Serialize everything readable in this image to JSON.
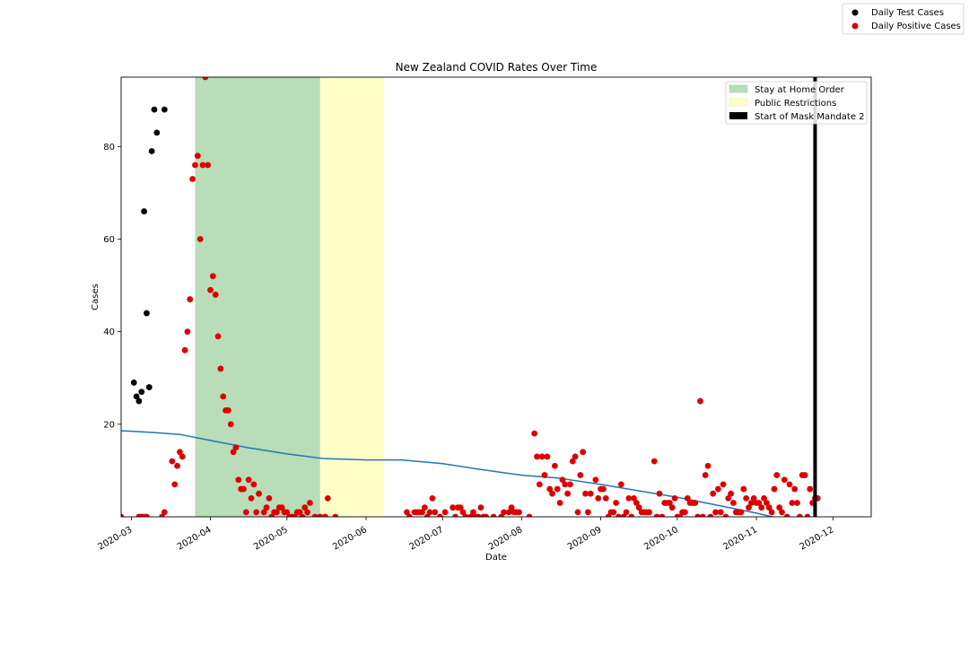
{
  "chart_data": {
    "type": "scatter",
    "title": "New Zealand COVID Rates Over Time",
    "xlabel": "Date",
    "ylabel": "Cases",
    "xlim": [
      "2020-02-26",
      "2020-12-16"
    ],
    "ylim": [
      0,
      95
    ],
    "x_ticks": [
      "2020-03",
      "2020-04",
      "2020-05",
      "2020-06",
      "2020-07",
      "2020-08",
      "2020-09",
      "2020-10",
      "2020-11",
      "2020-12"
    ],
    "y_ticks": [
      20,
      40,
      60,
      80
    ],
    "grid": false,
    "series_test": {
      "name": "Daily Test Cases",
      "color": "#000000",
      "points": [
        {
          "x": "2020-03-02",
          "y": 29
        },
        {
          "x": "2020-03-03",
          "y": 26
        },
        {
          "x": "2020-03-04",
          "y": 25
        },
        {
          "x": "2020-03-05",
          "y": 27
        },
        {
          "x": "2020-03-06",
          "y": 66
        },
        {
          "x": "2020-03-07",
          "y": 44
        },
        {
          "x": "2020-03-08",
          "y": 28
        },
        {
          "x": "2020-03-09",
          "y": 79
        },
        {
          "x": "2020-03-10",
          "y": 88
        },
        {
          "x": "2020-03-11",
          "y": 83
        },
        {
          "x": "2020-03-14",
          "y": 88
        }
      ]
    },
    "series_positive": {
      "name": "Daily Positive Cases",
      "color": "#dd0000",
      "points": [
        {
          "x": "2020-02-26",
          "y": 0
        },
        {
          "x": "2020-03-04",
          "y": 0
        },
        {
          "x": "2020-03-05",
          "y": 0
        },
        {
          "x": "2020-03-06",
          "y": 0
        },
        {
          "x": "2020-03-07",
          "y": 0
        },
        {
          "x": "2020-03-13",
          "y": 0
        },
        {
          "x": "2020-03-14",
          "y": 1
        },
        {
          "x": "2020-03-17",
          "y": 12
        },
        {
          "x": "2020-03-18",
          "y": 7
        },
        {
          "x": "2020-03-19",
          "y": 11
        },
        {
          "x": "2020-03-20",
          "y": 14
        },
        {
          "x": "2020-03-21",
          "y": 13
        },
        {
          "x": "2020-03-22",
          "y": 36
        },
        {
          "x": "2020-03-23",
          "y": 40
        },
        {
          "x": "2020-03-24",
          "y": 47
        },
        {
          "x": "2020-03-25",
          "y": 73
        },
        {
          "x": "2020-03-26",
          "y": 76
        },
        {
          "x": "2020-03-27",
          "y": 78
        },
        {
          "x": "2020-03-28",
          "y": 60
        },
        {
          "x": "2020-03-29",
          "y": 76
        },
        {
          "x": "2020-03-30",
          "y": 95
        },
        {
          "x": "2020-03-31",
          "y": 76
        },
        {
          "x": "2020-04-01",
          "y": 49
        },
        {
          "x": "2020-04-02",
          "y": 52
        },
        {
          "x": "2020-04-03",
          "y": 48
        },
        {
          "x": "2020-04-04",
          "y": 39
        },
        {
          "x": "2020-04-05",
          "y": 32
        },
        {
          "x": "2020-04-06",
          "y": 26
        },
        {
          "x": "2020-04-07",
          "y": 23
        },
        {
          "x": "2020-04-08",
          "y": 23
        },
        {
          "x": "2020-04-09",
          "y": 20
        },
        {
          "x": "2020-04-10",
          "y": 14
        },
        {
          "x": "2020-04-11",
          "y": 15
        },
        {
          "x": "2020-04-12",
          "y": 8
        },
        {
          "x": "2020-04-13",
          "y": 6
        },
        {
          "x": "2020-04-14",
          "y": 6
        },
        {
          "x": "2020-04-15",
          "y": 1
        },
        {
          "x": "2020-04-16",
          "y": 8
        },
        {
          "x": "2020-04-17",
          "y": 4
        },
        {
          "x": "2020-04-18",
          "y": 7
        },
        {
          "x": "2020-04-19",
          "y": 1
        },
        {
          "x": "2020-04-20",
          "y": 5
        },
        {
          "x": "2020-04-22",
          "y": 1
        },
        {
          "x": "2020-04-23",
          "y": 2
        },
        {
          "x": "2020-04-24",
          "y": 4
        },
        {
          "x": "2020-04-25",
          "y": 0
        },
        {
          "x": "2020-04-26",
          "y": 1
        },
        {
          "x": "2020-04-27",
          "y": 1
        },
        {
          "x": "2020-04-28",
          "y": 2
        },
        {
          "x": "2020-04-29",
          "y": 2
        },
        {
          "x": "2020-04-30",
          "y": 1
        },
        {
          "x": "2020-05-01",
          "y": 1
        },
        {
          "x": "2020-05-02",
          "y": 0
        },
        {
          "x": "2020-05-03",
          "y": 0
        },
        {
          "x": "2020-05-04",
          "y": 0
        },
        {
          "x": "2020-05-05",
          "y": 1
        },
        {
          "x": "2020-05-06",
          "y": 1
        },
        {
          "x": "2020-05-07",
          "y": 0
        },
        {
          "x": "2020-05-08",
          "y": 2
        },
        {
          "x": "2020-05-09",
          "y": 1
        },
        {
          "x": "2020-05-10",
          "y": 3
        },
        {
          "x": "2020-05-12",
          "y": 0
        },
        {
          "x": "2020-05-14",
          "y": 0
        },
        {
          "x": "2020-05-16",
          "y": 0
        },
        {
          "x": "2020-05-17",
          "y": 4
        },
        {
          "x": "2020-05-20",
          "y": 0
        },
        {
          "x": "2020-06-17",
          "y": 1
        },
        {
          "x": "2020-06-18",
          "y": 0
        },
        {
          "x": "2020-06-20",
          "y": 1
        },
        {
          "x": "2020-06-21",
          "y": 1
        },
        {
          "x": "2020-06-22",
          "y": 1
        },
        {
          "x": "2020-06-23",
          "y": 1
        },
        {
          "x": "2020-06-24",
          "y": 2
        },
        {
          "x": "2020-06-25",
          "y": 0
        },
        {
          "x": "2020-06-26",
          "y": 1
        },
        {
          "x": "2020-06-27",
          "y": 4
        },
        {
          "x": "2020-06-28",
          "y": 1
        },
        {
          "x": "2020-06-30",
          "y": 0
        },
        {
          "x": "2020-07-02",
          "y": 1
        },
        {
          "x": "2020-07-05",
          "y": 2
        },
        {
          "x": "2020-07-06",
          "y": 0
        },
        {
          "x": "2020-07-07",
          "y": 2
        },
        {
          "x": "2020-07-08",
          "y": 2
        },
        {
          "x": "2020-07-09",
          "y": 1
        },
        {
          "x": "2020-07-10",
          "y": 0
        },
        {
          "x": "2020-07-12",
          "y": 0
        },
        {
          "x": "2020-07-13",
          "y": 1
        },
        {
          "x": "2020-07-14",
          "y": 0
        },
        {
          "x": "2020-07-15",
          "y": 0
        },
        {
          "x": "2020-07-16",
          "y": 2
        },
        {
          "x": "2020-07-17",
          "y": 0
        },
        {
          "x": "2020-07-18",
          "y": 0
        },
        {
          "x": "2020-07-21",
          "y": 0
        },
        {
          "x": "2020-07-24",
          "y": 0
        },
        {
          "x": "2020-07-25",
          "y": 1
        },
        {
          "x": "2020-07-27",
          "y": 1
        },
        {
          "x": "2020-07-28",
          "y": 2
        },
        {
          "x": "2020-07-29",
          "y": 1
        },
        {
          "x": "2020-07-30",
          "y": 1
        },
        {
          "x": "2020-07-31",
          "y": 1
        },
        {
          "x": "2020-08-04",
          "y": 0
        },
        {
          "x": "2020-08-06",
          "y": 18
        },
        {
          "x": "2020-08-07",
          "y": 13
        },
        {
          "x": "2020-08-08",
          "y": 7
        },
        {
          "x": "2020-08-09",
          "y": 13
        },
        {
          "x": "2020-08-10",
          "y": 9
        },
        {
          "x": "2020-08-11",
          "y": 13
        },
        {
          "x": "2020-08-12",
          "y": 6
        },
        {
          "x": "2020-08-13",
          "y": 5
        },
        {
          "x": "2020-08-14",
          "y": 11
        },
        {
          "x": "2020-08-15",
          "y": 6
        },
        {
          "x": "2020-08-16",
          "y": 3
        },
        {
          "x": "2020-08-17",
          "y": 8
        },
        {
          "x": "2020-08-18",
          "y": 7
        },
        {
          "x": "2020-08-19",
          "y": 5
        },
        {
          "x": "2020-08-20",
          "y": 7
        },
        {
          "x": "2020-08-21",
          "y": 12
        },
        {
          "x": "2020-08-22",
          "y": 13
        },
        {
          "x": "2020-08-23",
          "y": 1
        },
        {
          "x": "2020-08-24",
          "y": 9
        },
        {
          "x": "2020-08-25",
          "y": 14
        },
        {
          "x": "2020-08-26",
          "y": 5
        },
        {
          "x": "2020-08-27",
          "y": 1
        },
        {
          "x": "2020-08-28",
          "y": 5
        },
        {
          "x": "2020-08-30",
          "y": 8
        },
        {
          "x": "2020-08-31",
          "y": 4
        },
        {
          "x": "2020-09-01",
          "y": 6
        },
        {
          "x": "2020-09-02",
          "y": 6
        },
        {
          "x": "2020-09-03",
          "y": 4
        },
        {
          "x": "2020-09-04",
          "y": 0
        },
        {
          "x": "2020-09-05",
          "y": 1
        },
        {
          "x": "2020-09-06",
          "y": 1
        },
        {
          "x": "2020-09-07",
          "y": 3
        },
        {
          "x": "2020-09-08",
          "y": 0
        },
        {
          "x": "2020-09-09",
          "y": 7
        },
        {
          "x": "2020-09-10",
          "y": 0
        },
        {
          "x": "2020-09-11",
          "y": 1
        },
        {
          "x": "2020-09-12",
          "y": 4
        },
        {
          "x": "2020-09-13",
          "y": 0
        },
        {
          "x": "2020-09-14",
          "y": 4
        },
        {
          "x": "2020-09-15",
          "y": 3
        },
        {
          "x": "2020-09-16",
          "y": 2
        },
        {
          "x": "2020-09-17",
          "y": 1
        },
        {
          "x": "2020-09-18",
          "y": 1
        },
        {
          "x": "2020-09-19",
          "y": 1
        },
        {
          "x": "2020-09-20",
          "y": 1
        },
        {
          "x": "2020-09-22",
          "y": 12
        },
        {
          "x": "2020-09-23",
          "y": 0
        },
        {
          "x": "2020-09-24",
          "y": 5
        },
        {
          "x": "2020-09-25",
          "y": 0
        },
        {
          "x": "2020-09-26",
          "y": 3
        },
        {
          "x": "2020-09-27",
          "y": 3
        },
        {
          "x": "2020-09-28",
          "y": 3
        },
        {
          "x": "2020-09-29",
          "y": 2
        },
        {
          "x": "2020-09-30",
          "y": 4
        },
        {
          "x": "2020-10-01",
          "y": 0
        },
        {
          "x": "2020-10-02",
          "y": 0
        },
        {
          "x": "2020-10-03",
          "y": 1
        },
        {
          "x": "2020-10-04",
          "y": 1
        },
        {
          "x": "2020-10-05",
          "y": 4
        },
        {
          "x": "2020-10-06",
          "y": 3
        },
        {
          "x": "2020-10-07",
          "y": 3
        },
        {
          "x": "2020-10-08",
          "y": 3
        },
        {
          "x": "2020-10-09",
          "y": 0
        },
        {
          "x": "2020-10-10",
          "y": 25
        },
        {
          "x": "2020-10-11",
          "y": 0
        },
        {
          "x": "2020-10-12",
          "y": 9
        },
        {
          "x": "2020-10-13",
          "y": 11
        },
        {
          "x": "2020-10-14",
          "y": 0
        },
        {
          "x": "2020-10-15",
          "y": 5
        },
        {
          "x": "2020-10-16",
          "y": 1
        },
        {
          "x": "2020-10-17",
          "y": 6
        },
        {
          "x": "2020-10-18",
          "y": 1
        },
        {
          "x": "2020-10-19",
          "y": 7
        },
        {
          "x": "2020-10-20",
          "y": 0
        },
        {
          "x": "2020-10-21",
          "y": 4
        },
        {
          "x": "2020-10-22",
          "y": 5
        },
        {
          "x": "2020-10-23",
          "y": 3
        },
        {
          "x": "2020-10-24",
          "y": 1
        },
        {
          "x": "2020-10-25",
          "y": 1
        },
        {
          "x": "2020-10-26",
          "y": 1
        },
        {
          "x": "2020-10-27",
          "y": 6
        },
        {
          "x": "2020-10-28",
          "y": 4
        },
        {
          "x": "2020-10-29",
          "y": 2
        },
        {
          "x": "2020-10-30",
          "y": 3
        },
        {
          "x": "2020-10-31",
          "y": 4
        },
        {
          "x": "2020-11-01",
          "y": 3
        },
        {
          "x": "2020-11-02",
          "y": 3
        },
        {
          "x": "2020-11-03",
          "y": 2
        },
        {
          "x": "2020-11-04",
          "y": 4
        },
        {
          "x": "2020-11-05",
          "y": 3
        },
        {
          "x": "2020-11-06",
          "y": 2
        },
        {
          "x": "2020-11-07",
          "y": 1
        },
        {
          "x": "2020-11-08",
          "y": 6
        },
        {
          "x": "2020-11-09",
          "y": 9
        },
        {
          "x": "2020-11-10",
          "y": 2
        },
        {
          "x": "2020-11-11",
          "y": 1
        },
        {
          "x": "2020-11-12",
          "y": 8
        },
        {
          "x": "2020-11-13",
          "y": 0
        },
        {
          "x": "2020-11-14",
          "y": 7
        },
        {
          "x": "2020-11-15",
          "y": 3
        },
        {
          "x": "2020-11-16",
          "y": 6
        },
        {
          "x": "2020-11-17",
          "y": 3
        },
        {
          "x": "2020-11-18",
          "y": 0
        },
        {
          "x": "2020-11-19",
          "y": 9
        },
        {
          "x": "2020-11-20",
          "y": 9
        },
        {
          "x": "2020-11-21",
          "y": 0
        },
        {
          "x": "2020-11-22",
          "y": 6
        },
        {
          "x": "2020-11-23",
          "y": 3
        },
        {
          "x": "2020-11-24",
          "y": 4
        },
        {
          "x": "2020-11-25",
          "y": 4
        }
      ]
    },
    "trend_line": {
      "color": "#1f77b4",
      "points": [
        {
          "x": "2020-02-26",
          "y": 18.6
        },
        {
          "x": "2020-03-01",
          "y": 18.5
        },
        {
          "x": "2020-03-10",
          "y": 18.2
        },
        {
          "x": "2020-03-20",
          "y": 17.8
        },
        {
          "x": "2020-04-01",
          "y": 16.5
        },
        {
          "x": "2020-04-15",
          "y": 15.0
        },
        {
          "x": "2020-05-01",
          "y": 13.6
        },
        {
          "x": "2020-05-15",
          "y": 12.6
        },
        {
          "x": "2020-06-01",
          "y": 12.3
        },
        {
          "x": "2020-06-15",
          "y": 12.3
        },
        {
          "x": "2020-07-01",
          "y": 11.5
        },
        {
          "x": "2020-07-15",
          "y": 10.3
        },
        {
          "x": "2020-08-01",
          "y": 9.0
        },
        {
          "x": "2020-08-15",
          "y": 8.4
        },
        {
          "x": "2020-09-01",
          "y": 7.0
        },
        {
          "x": "2020-09-15",
          "y": 5.7
        },
        {
          "x": "2020-10-01",
          "y": 4.2
        },
        {
          "x": "2020-10-15",
          "y": 2.7
        },
        {
          "x": "2020-11-01",
          "y": 0.8
        },
        {
          "x": "2020-11-12",
          "y": -0.6
        }
      ]
    },
    "spans": [
      {
        "label": "Stay at Home Order",
        "start": "2020-03-26",
        "end": "2020-05-14",
        "color": "#b9dcb9"
      },
      {
        "label": "Public Restrictions",
        "start": "2020-05-14",
        "end": "2020-06-08",
        "color": "#ffffc8"
      }
    ],
    "vline": {
      "label": "Start of Mask Mandate 2",
      "x": "2020-11-24",
      "color": "#000000"
    },
    "legend_upper": {
      "placement": "figure top-right",
      "entries": [
        "Daily Test Cases",
        "Daily Positive Cases"
      ]
    },
    "legend_inner": {
      "placement": "upper right",
      "entries": [
        "Stay at Home Order",
        "Public Restrictions",
        "Start of Mask Mandate 2"
      ]
    }
  }
}
